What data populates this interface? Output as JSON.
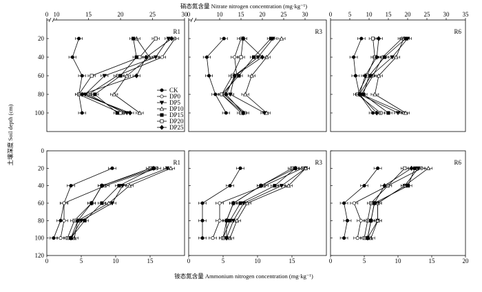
{
  "figure": {
    "top_axis_title": "硝态氮含量 Nitrate nitrogen concentration (mg·kg⁻¹)",
    "bottom_axis_title": "铵态氮含量 Ammonium nitrogen concentration (mg·kg⁻¹)",
    "y_axis_title": "土壤深度 Soil depth (cm)",
    "legend": [
      "CK",
      "DP0",
      "DP5",
      "DP10",
      "DP15",
      "DP20",
      "DP25"
    ]
  },
  "chart_data": [
    {
      "type": "line",
      "panel": "R1",
      "title": "R1",
      "variable": "nitrate",
      "xlim": [
        10,
        30
      ],
      "xticks": [
        0,
        10,
        15,
        20,
        25,
        30
      ],
      "xaxis": "top",
      "axis_break": true,
      "ylim": [
        0,
        120
      ],
      "yticks": [
        20,
        40,
        60,
        80,
        100
      ],
      "depths": [
        20,
        40,
        60,
        80,
        100
      ],
      "series": [
        {
          "name": "CK",
          "values": [
            13.5,
            12.5,
            14.0,
            13.5,
            14.0
          ]
        },
        {
          "name": "DP0",
          "values": [
            28.5,
            26.5,
            19.5,
            15.0,
            20.5
          ]
        },
        {
          "name": "DP5",
          "values": [
            27.5,
            25.5,
            17.5,
            14.5,
            21.0
          ]
        },
        {
          "name": "DP10",
          "values": [
            22.5,
            24.5,
            21.0,
            19.0,
            23.0
          ]
        },
        {
          "name": "DP15",
          "values": [
            22.0,
            22.5,
            20.0,
            16.0,
            19.5
          ]
        },
        {
          "name": "DP20",
          "values": [
            25.5,
            23.0,
            15.5,
            13.5,
            20.0
          ]
        },
        {
          "name": "DP25",
          "values": [
            28.0,
            24.0,
            22.5,
            14.0,
            21.5
          ]
        }
      ]
    },
    {
      "type": "line",
      "panel": "R3",
      "title": "R3",
      "variable": "nitrate",
      "xlim": [
        5,
        35
      ],
      "xticks": [
        0,
        10,
        15,
        20,
        25,
        30
      ],
      "xaxis": "top",
      "axis_break": true,
      "ylim": [
        0,
        120
      ],
      "yticks": [
        20,
        40,
        60,
        80,
        100
      ],
      "depths": [
        20,
        40,
        60,
        80,
        100
      ],
      "series": [
        {
          "name": "CK",
          "values": [
            11.0,
            7.0,
            7.5,
            9.0,
            11.5
          ]
        },
        {
          "name": "DP0",
          "values": [
            15.0,
            13.5,
            14.0,
            11.0,
            16.0
          ]
        },
        {
          "name": "DP5",
          "values": [
            22.5,
            19.0,
            13.5,
            12.5,
            20.5
          ]
        },
        {
          "name": "DP10",
          "values": [
            24.5,
            21.0,
            17.5,
            16.0,
            21.0
          ]
        },
        {
          "name": "DP15",
          "values": [
            22.0,
            18.0,
            14.5,
            10.5,
            15.5
          ]
        },
        {
          "name": "DP20",
          "values": [
            15.5,
            15.0,
            13.0,
            10.5,
            15.0
          ]
        },
        {
          "name": "DP25",
          "values": [
            15.5,
            20.0,
            13.5,
            11.5,
            15.5
          ]
        }
      ]
    },
    {
      "type": "line",
      "panel": "R6",
      "title": "R6",
      "variable": "nitrate",
      "xlim": [
        0,
        35
      ],
      "xticks": [
        0,
        5,
        10,
        15,
        20,
        25,
        30,
        35
      ],
      "xaxis": "top",
      "ylim": [
        0,
        120
      ],
      "yticks": [
        20,
        40,
        60,
        80,
        100
      ],
      "depths": [
        20,
        40,
        60,
        80,
        100
      ],
      "series": [
        {
          "name": "CK",
          "values": [
            8.0,
            6.0,
            6.5,
            7.5,
            11.0
          ]
        },
        {
          "name": "DP0",
          "values": [
            18.5,
            13.5,
            11.0,
            8.0,
            19.0
          ]
        },
        {
          "name": "DP5",
          "values": [
            20.0,
            16.0,
            10.5,
            7.5,
            17.5
          ]
        },
        {
          "name": "DP10",
          "values": [
            19.0,
            17.0,
            12.5,
            11.5,
            19.5
          ]
        },
        {
          "name": "DP15",
          "values": [
            19.5,
            14.0,
            10.0,
            8.5,
            15.0
          ]
        },
        {
          "name": "DP20",
          "values": [
            11.0,
            11.5,
            9.5,
            7.0,
            13.0
          ]
        },
        {
          "name": "DP25",
          "values": [
            12.5,
            12.0,
            9.0,
            7.5,
            12.0
          ]
        }
      ]
    },
    {
      "type": "line",
      "panel": "R1",
      "title": "R1",
      "variable": "ammonium",
      "xlim": [
        0,
        20
      ],
      "xticks": [
        0,
        5,
        10,
        15
      ],
      "ylim": [
        0,
        120
      ],
      "yticks": [
        0,
        20,
        40,
        60,
        80,
        100,
        120
      ],
      "depths": [
        20,
        40,
        60,
        80,
        100
      ],
      "series": [
        {
          "name": "CK",
          "values": [
            9.5,
            3.5,
            2.5,
            2.0,
            1.0
          ]
        },
        {
          "name": "DP0",
          "values": [
            16.0,
            8.5,
            2.5,
            2.5,
            2.0
          ]
        },
        {
          "name": "DP5",
          "values": [
            17.5,
            11.0,
            9.5,
            5.0,
            3.5
          ]
        },
        {
          "name": "DP10",
          "values": [
            18.0,
            12.0,
            9.0,
            4.5,
            4.0
          ]
        },
        {
          "name": "DP15",
          "values": [
            15.5,
            10.5,
            8.0,
            5.5,
            3.5
          ]
        },
        {
          "name": "DP20",
          "values": [
            15.0,
            8.0,
            6.5,
            4.0,
            3.0
          ]
        },
        {
          "name": "DP25",
          "values": [
            15.5,
            8.0,
            6.5,
            4.5,
            3.5
          ]
        }
      ]
    },
    {
      "type": "line",
      "panel": "R3",
      "title": "R3",
      "variable": "ammonium",
      "xlim": [
        0,
        20
      ],
      "xticks": [
        0,
        5,
        10,
        15
      ],
      "ylim": [
        0,
        120
      ],
      "yticks": [
        0,
        20,
        40,
        60,
        80,
        100,
        120
      ],
      "depths": [
        20,
        40,
        60,
        80,
        100
      ],
      "series": [
        {
          "name": "CK",
          "values": [
            7.5,
            6.0,
            2.0,
            2.0,
            2.0
          ]
        },
        {
          "name": "DP0",
          "values": [
            16.5,
            11.0,
            4.5,
            4.5,
            3.5
          ]
        },
        {
          "name": "DP5",
          "values": [
            17.0,
            13.5,
            8.0,
            6.5,
            5.5
          ]
        },
        {
          "name": "DP10",
          "values": [
            17.0,
            14.5,
            8.5,
            7.0,
            6.0
          ]
        },
        {
          "name": "DP15",
          "values": [
            15.5,
            12.5,
            7.5,
            6.0,
            5.0
          ]
        },
        {
          "name": "DP20",
          "values": [
            15.0,
            10.5,
            6.5,
            5.5,
            5.0
          ]
        },
        {
          "name": "DP25",
          "values": [
            15.5,
            10.5,
            6.5,
            5.5,
            5.5
          ]
        }
      ]
    },
    {
      "type": "line",
      "panel": "R6",
      "title": "R6",
      "variable": "ammonium",
      "xlim": [
        0,
        20
      ],
      "xticks": [
        0,
        5,
        10,
        15,
        20
      ],
      "ylim": [
        0,
        120
      ],
      "yticks": [
        0,
        20,
        40,
        60,
        80,
        100,
        120
      ],
      "depths": [
        20,
        40,
        60,
        80,
        100
      ],
      "series": [
        {
          "name": "CK",
          "values": [
            7.0,
            5.0,
            2.0,
            2.5,
            2.0
          ]
        },
        {
          "name": "DP0",
          "values": [
            13.5,
            8.5,
            3.5,
            4.5,
            4.0
          ]
        },
        {
          "name": "DP5",
          "values": [
            13.0,
            11.0,
            7.0,
            7.0,
            5.5
          ]
        },
        {
          "name": "DP10",
          "values": [
            14.5,
            11.0,
            7.0,
            7.0,
            6.0
          ]
        },
        {
          "name": "DP15",
          "values": [
            12.5,
            11.5,
            6.5,
            6.0,
            5.5
          ]
        },
        {
          "name": "DP20",
          "values": [
            11.0,
            8.5,
            6.0,
            5.5,
            5.0
          ]
        },
        {
          "name": "DP25",
          "values": [
            12.0,
            8.0,
            6.5,
            6.0,
            5.5
          ]
        }
      ]
    }
  ]
}
